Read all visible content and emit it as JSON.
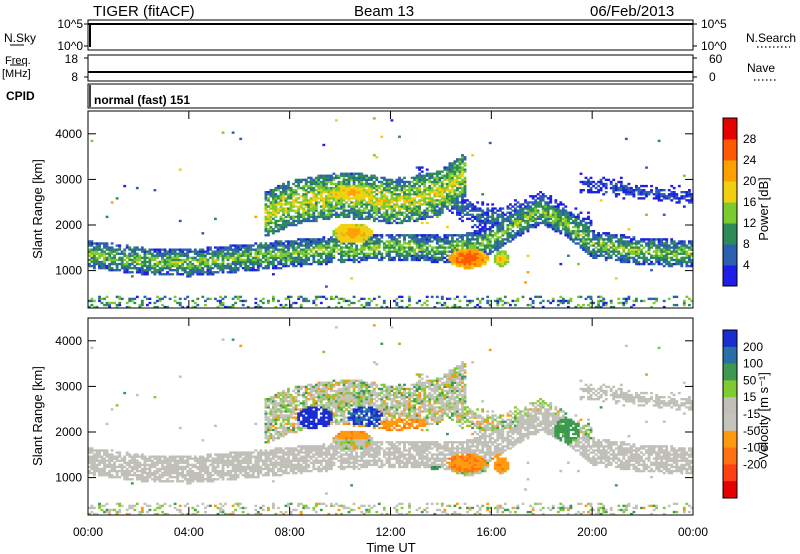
{
  "header": {
    "station": "TIGER (fitACF)",
    "beam": "Beam 13",
    "date": "06/Feb/2013"
  },
  "strips": {
    "nsky_label": "N.Sky",
    "nsky_ticks": [
      "10^5",
      "10^0"
    ],
    "nsearch_label": "N.Search",
    "nsearch_ticks": [
      "10^5",
      "10^0"
    ],
    "freq_label_1": "Freq.",
    "freq_label_2": "[MHz]",
    "freq_ticks": [
      "18",
      "8"
    ],
    "nave_label": "Nave",
    "nave_ticks": [
      "60",
      "0"
    ],
    "cpid_label": "CPID",
    "cpid_value": "normal (fast) 151"
  },
  "colors": {
    "power": [
      "#1e1ee6",
      "#2c5fb0",
      "#2e8b57",
      "#7acc2e",
      "#f0d010",
      "#ffa000",
      "#ff5a00",
      "#e60000"
    ],
    "velocity": [
      "#1a2dd0",
      "#2a6fa8",
      "#3d9950",
      "#80cc30",
      "#c0c0b8",
      "#c4c4bc",
      "#ff9a10",
      "#ff7010",
      "#ff4010",
      "#e60000"
    ],
    "ground_scatter": "#c0c0b8"
  },
  "chart_data": [
    {
      "type": "heatmap",
      "panel": "power",
      "xlabel": "Time UT",
      "ylabel": "Slant Range [km]",
      "x_ticks": [
        "00:00",
        "04:00",
        "08:00",
        "12:00",
        "16:00",
        "20:00",
        "00:00"
      ],
      "y_ticks": [
        "1000",
        "2000",
        "3000",
        "4000"
      ],
      "xlim": [
        0,
        24
      ],
      "ylim": [
        180,
        4500
      ],
      "colorbar_label": "Power [dB]",
      "colorbar_ticks": [
        "4",
        "8",
        "12",
        "16",
        "20",
        "24",
        "28"
      ],
      "colorbar_range": [
        0,
        32
      ],
      "bands": [
        {
          "name": "main",
          "t": [
            0,
            2,
            4,
            6,
            8,
            10,
            12,
            13,
            14,
            15,
            16,
            17,
            18,
            19,
            20,
            22,
            24
          ],
          "r": [
            1350,
            1200,
            1150,
            1250,
            1350,
            1450,
            1500,
            1500,
            1450,
            1500,
            1650,
            2000,
            2300,
            2000,
            1550,
            1400,
            1350
          ],
          "width": 300,
          "core": 14
        },
        {
          "name": "upper",
          "t": [
            7,
            8,
            9,
            10,
            11,
            12,
            13,
            14,
            15
          ],
          "r": [
            2200,
            2450,
            2550,
            2650,
            2600,
            2500,
            2550,
            2700,
            3100
          ],
          "width": 500,
          "core": 17
        },
        {
          "name": "arc-high",
          "t": [
            13,
            14,
            15,
            16,
            17,
            18,
            19,
            20
          ],
          "r": [
            3000,
            2700,
            2300,
            2100,
            2200,
            2400,
            2100,
            1800
          ],
          "width": 350,
          "core": 8
        },
        {
          "name": "late-high",
          "t": [
            19.5,
            21,
            22.5,
            24
          ],
          "r": [
            2900,
            2800,
            2650,
            2600
          ],
          "width": 300,
          "core": 5
        }
      ],
      "blobs": [
        {
          "t": 15.1,
          "r": 1250,
          "dt": 0.8,
          "dr": 220,
          "p": 28
        },
        {
          "t": 16.4,
          "r": 1250,
          "dt": 0.3,
          "dr": 180,
          "p": 22
        },
        {
          "t": 10.5,
          "r": 1800,
          "dt": 0.8,
          "dr": 220,
          "p": 24
        },
        {
          "t": 10.5,
          "r": 2700,
          "dt": 0.9,
          "dr": 180,
          "p": 22
        }
      ]
    },
    {
      "type": "heatmap",
      "panel": "velocity",
      "xlabel": "Time UT",
      "ylabel": "Slant Range [km]",
      "x_ticks": [
        "00:00",
        "04:00",
        "08:00",
        "12:00",
        "16:00",
        "20:00",
        "00:00"
      ],
      "y_ticks": [
        "1000",
        "2000",
        "3000",
        "4000"
      ],
      "xlim": [
        0,
        24
      ],
      "ylim": [
        180,
        4500
      ],
      "colorbar_label": "Velocity [m s⁻¹]",
      "colorbar_ticks": [
        "200",
        "100",
        "50",
        "15",
        "-15",
        "-50",
        "-100",
        "-200"
      ],
      "colorbar_range": [
        -250,
        250
      ],
      "blobs": [
        {
          "t": 9.0,
          "r": 2300,
          "dt": 0.7,
          "dr": 250,
          "v": 180
        },
        {
          "t": 11.0,
          "r": 2300,
          "dt": 0.7,
          "dr": 250,
          "v": 150
        },
        {
          "t": 10.5,
          "r": 2000,
          "dt": 1.2,
          "dr": 180,
          "v": -60
        },
        {
          "t": 12.5,
          "r": 2100,
          "dt": 1.0,
          "dr": 200,
          "v": -60
        },
        {
          "t": 15.0,
          "r": 1300,
          "dt": 0.8,
          "dr": 220,
          "v": -70
        },
        {
          "t": 16.4,
          "r": 1300,
          "dt": 0.4,
          "dr": 200,
          "v": -60
        },
        {
          "t": 19.0,
          "r": 2000,
          "dt": 0.5,
          "dr": 300,
          "v": 50
        },
        {
          "t": 13.8,
          "r": 1100,
          "dt": 0.3,
          "dr": 150,
          "v": 60
        }
      ]
    }
  ]
}
